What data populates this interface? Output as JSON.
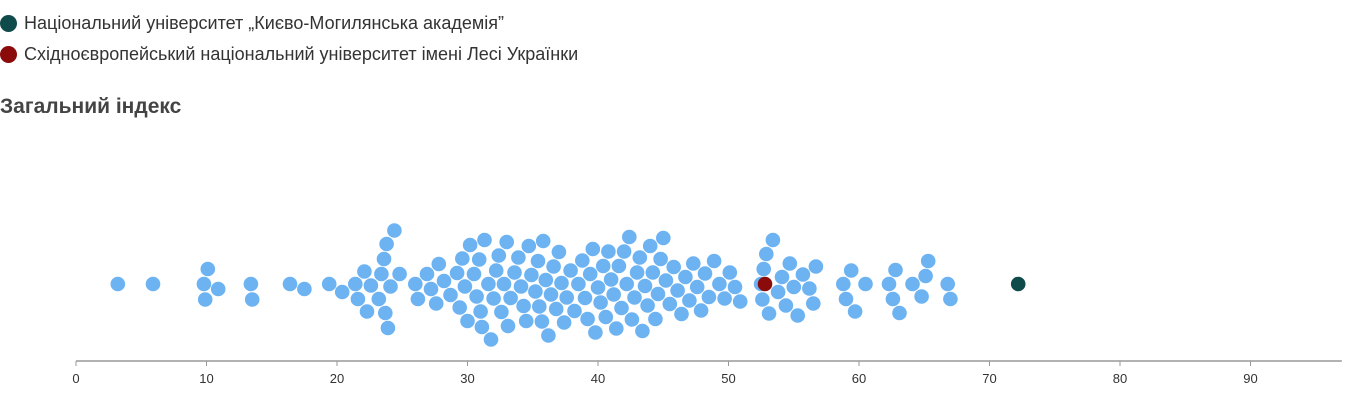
{
  "legend": {
    "items": [
      {
        "label": "Національний університет „Києво-Могилянська академія”",
        "color": "#0f4b4b"
      },
      {
        "label": "Східноєвропейський національний університет імені Лесі Українки",
        "color": "#8b0a0a"
      }
    ]
  },
  "chart_data": {
    "type": "scatter",
    "title": "Загальний індекс",
    "xlabel": "",
    "ylabel": "",
    "xlim": [
      0,
      97
    ],
    "ticks": [
      0,
      10,
      20,
      30,
      40,
      50,
      60,
      70,
      80,
      90
    ],
    "grid": false,
    "legend_position": "top-left",
    "base_color": "#6db3f2",
    "highlights": [
      {
        "x": 72.2,
        "color": "#0f4b4b"
      },
      {
        "x": 52.8,
        "color": "#8b0a0a"
      }
    ],
    "values": [
      3.2,
      5.9,
      9.8,
      9.9,
      10.1,
      10.9,
      13.4,
      13.5,
      16.4,
      17.5,
      19.4,
      20.4,
      21.4,
      21.6,
      22.1,
      22.3,
      22.6,
      23.2,
      23.4,
      23.6,
      23.7,
      23.8,
      23.9,
      24.1,
      24.4,
      24.8,
      26.0,
      26.2,
      26.9,
      27.2,
      27.6,
      27.8,
      28.2,
      28.7,
      29.2,
      29.4,
      29.6,
      29.8,
      30.0,
      30.2,
      30.5,
      30.7,
      30.9,
      31.0,
      31.1,
      31.3,
      31.6,
      31.8,
      32.0,
      32.2,
      32.4,
      32.6,
      32.8,
      33.0,
      33.1,
      33.3,
      33.6,
      33.9,
      34.1,
      34.3,
      34.5,
      34.7,
      34.9,
      35.2,
      35.4,
      35.5,
      35.7,
      35.8,
      36.0,
      36.2,
      36.4,
      36.6,
      36.8,
      37.0,
      37.2,
      37.4,
      37.6,
      37.9,
      38.2,
      38.5,
      38.8,
      39.0,
      39.2,
      39.4,
      39.6,
      39.8,
      40.0,
      40.2,
      40.4,
      40.6,
      40.8,
      41.0,
      41.2,
      41.4,
      41.6,
      41.8,
      42.0,
      42.2,
      42.4,
      42.6,
      42.8,
      43.0,
      43.2,
      43.4,
      43.6,
      43.8,
      44.0,
      44.2,
      44.4,
      44.6,
      44.8,
      45.0,
      45.2,
      45.5,
      45.8,
      46.1,
      46.4,
      46.7,
      47.0,
      47.3,
      47.6,
      47.9,
      48.2,
      48.5,
      48.9,
      49.3,
      49.7,
      50.1,
      50.5,
      50.9,
      52.5,
      52.6,
      52.7,
      52.9,
      53.1,
      53.4,
      53.8,
      54.1,
      54.4,
      54.7,
      55.0,
      55.3,
      55.7,
      56.2,
      56.5,
      56.7,
      58.8,
      59.0,
      59.4,
      59.7,
      60.5,
      62.3,
      62.6,
      62.8,
      63.1,
      64.1,
      64.8,
      65.1,
      65.3,
      66.8,
      67.0
    ]
  }
}
